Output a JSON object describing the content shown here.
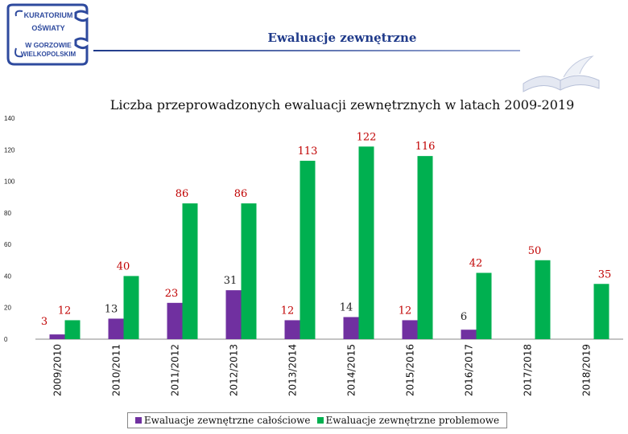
{
  "header": {
    "title": "Ewaluacje zewnętrzne",
    "logo_lines": [
      "KURATORIUM",
      "OŚWIATY",
      "W GORZOWIE",
      "WIELKOPOLSKIM"
    ]
  },
  "colors": {
    "series_1": "#7030a0",
    "series_2": "#00b050",
    "data_label": "#c00000",
    "logo": "#2e4a9e"
  },
  "icons": {
    "logo": "kuratorium-logo",
    "decoration": "open-book-icon"
  },
  "chart_data": {
    "type": "bar",
    "title": "Liczba przeprowadzonych ewaluacji zewnętrznych w latach 2009-2019",
    "xlabel": "",
    "ylabel": "",
    "ylim": [
      0,
      140
    ],
    "yticks": [
      0,
      20,
      40,
      60,
      80,
      100,
      120,
      140
    ],
    "grid": false,
    "legend": "bottom",
    "categories": [
      "2009/2010",
      "2010/2011",
      "2011/2012",
      "2012/2013",
      "2013/2014",
      "2014/2015",
      "2015/2016",
      "2016/2017",
      "2017/2018",
      "2018/2019"
    ],
    "series": [
      {
        "name": "Ewaluacje zewnętrzne całościowe",
        "values": [
          3,
          13,
          23,
          31,
          12,
          14,
          12,
          6,
          null,
          null
        ]
      },
      {
        "name": "Ewaluacje zewnętrzne problemowe",
        "values": [
          12,
          40,
          86,
          86,
          113,
          122,
          116,
          42,
          50,
          35
        ]
      }
    ]
  }
}
